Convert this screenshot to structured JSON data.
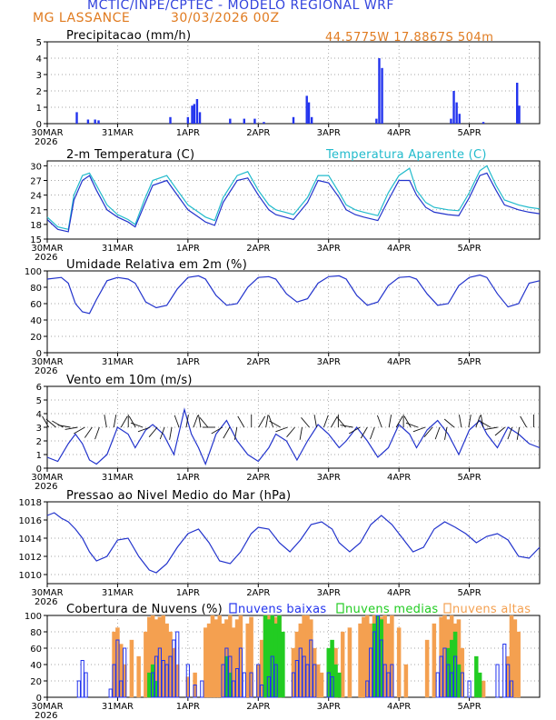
{
  "header": {
    "title": "MCTIC/INPE/CPTEC - MODELO REGIONAL WRF",
    "station": "MG LASSANCE",
    "run": "30/03/2026 00Z",
    "location": "44.5775W 17.8867S 504m",
    "title_color": "#3344dd",
    "orange_color": "#e07b20"
  },
  "time_axis": {
    "labels": [
      "30MAR",
      "31MAR",
      "1APR",
      "2APR",
      "3APR",
      "4APR",
      "5APR"
    ],
    "year": "2026",
    "days": 7
  },
  "chart_data": [
    {
      "type": "bar",
      "title": "Precipitacao (mm/h)",
      "ylim": [
        0,
        5
      ],
      "yticks": [
        "0",
        "1",
        "2",
        "3",
        "4",
        "5"
      ],
      "x": [
        0.42,
        0.58,
        0.68,
        0.73,
        1.75,
        2.0,
        2.06,
        2.09,
        2.13,
        2.17,
        2.6,
        2.8,
        2.95,
        3.08,
        3.5,
        3.69,
        3.72,
        3.76,
        4.68,
        4.72,
        4.76,
        5.74,
        5.78,
        5.82,
        5.86,
        6.2,
        6.68,
        6.71
      ],
      "values": [
        0.7,
        0.25,
        0.25,
        0.2,
        0.4,
        0.4,
        1.1,
        1.2,
        1.5,
        0.7,
        0.3,
        0.3,
        0.3,
        0.1,
        0.4,
        1.7,
        1.3,
        0.4,
        0.3,
        4.0,
        3.4,
        0.3,
        2.0,
        1.3,
        0.6,
        0.1,
        2.5,
        1.1
      ],
      "colors": {
        "bar": "#2233ee"
      }
    },
    {
      "type": "line",
      "title": "2-m Temperatura (C)",
      "title2": "Temperatura Aparente (C)",
      "ylim": [
        15,
        31
      ],
      "yticks": [
        "15",
        "18",
        "21",
        "24",
        "27",
        "30"
      ],
      "series": [
        {
          "name": "2-m Temperatura",
          "color": "#2233cc",
          "x": [
            0,
            0.15,
            0.3,
            0.38,
            0.5,
            0.6,
            0.7,
            0.85,
            1.0,
            1.15,
            1.25,
            1.38,
            1.5,
            1.7,
            1.85,
            2.0,
            2.15,
            2.25,
            2.38,
            2.5,
            2.7,
            2.85,
            3.0,
            3.15,
            3.25,
            3.38,
            3.5,
            3.7,
            3.85,
            4.0,
            4.15,
            4.25,
            4.38,
            4.5,
            4.7,
            4.85,
            5.0,
            5.15,
            5.25,
            5.38,
            5.5,
            5.7,
            5.85,
            6.0,
            6.15,
            6.25,
            6.38,
            6.5,
            6.7,
            6.85,
            7.0
          ],
          "values": [
            19,
            17,
            16.5,
            23,
            27,
            28,
            25,
            21,
            19.5,
            18.5,
            17.5,
            22,
            26,
            27,
            24,
            21,
            19.5,
            18.5,
            17.8,
            22.5,
            27,
            27.5,
            24,
            21,
            20,
            19.5,
            19,
            22.5,
            27,
            26.5,
            23.5,
            21,
            20,
            19.5,
            18.8,
            23,
            27,
            27,
            24,
            21.5,
            20.5,
            20,
            19.8,
            23.5,
            28,
            28.5,
            25,
            22,
            21,
            20.5,
            20.2
          ]
        },
        {
          "name": "Temperatura Aparente",
          "color": "#22bbcc",
          "x": [
            0,
            0.15,
            0.3,
            0.38,
            0.5,
            0.6,
            0.7,
            0.85,
            1.0,
            1.15,
            1.25,
            1.38,
            1.5,
            1.7,
            1.85,
            2.0,
            2.15,
            2.25,
            2.38,
            2.5,
            2.7,
            2.85,
            3.0,
            3.15,
            3.25,
            3.38,
            3.5,
            3.7,
            3.85,
            4.0,
            4.15,
            4.25,
            4.38,
            4.5,
            4.7,
            4.85,
            5.0,
            5.15,
            5.25,
            5.38,
            5.5,
            5.7,
            5.85,
            6.0,
            6.15,
            6.25,
            6.38,
            6.5,
            6.7,
            6.85,
            7.0
          ],
          "values": [
            19.5,
            17.5,
            17,
            24,
            28,
            28.5,
            26,
            22,
            20,
            19,
            18,
            23,
            27,
            28,
            25,
            22,
            20.5,
            19.5,
            18.8,
            23.5,
            28,
            28.8,
            25,
            22,
            21,
            20.5,
            20,
            23.5,
            28,
            28,
            24.5,
            22,
            21,
            20.5,
            19.8,
            24.5,
            28,
            29.5,
            25,
            22.5,
            21.5,
            21,
            20.8,
            24.5,
            29,
            30,
            26,
            23,
            22,
            21.5,
            21.2
          ]
        }
      ]
    },
    {
      "type": "line",
      "title": "Umidade Relativa em 2m (%)",
      "ylim": [
        0,
        100
      ],
      "yticks": [
        "0",
        "20",
        "40",
        "60",
        "80",
        "100"
      ],
      "series": [
        {
          "name": "Umidade Relativa",
          "color": "#2233cc",
          "x": [
            0,
            0.2,
            0.3,
            0.4,
            0.5,
            0.6,
            0.7,
            0.85,
            1.0,
            1.15,
            1.25,
            1.4,
            1.55,
            1.7,
            1.85,
            2.0,
            2.15,
            2.25,
            2.4,
            2.55,
            2.7,
            2.85,
            3.0,
            3.15,
            3.25,
            3.4,
            3.55,
            3.7,
            3.85,
            4.0,
            4.15,
            4.25,
            4.4,
            4.55,
            4.7,
            4.85,
            5.0,
            5.15,
            5.25,
            5.4,
            5.55,
            5.7,
            5.85,
            6.0,
            6.15,
            6.25,
            6.4,
            6.55,
            6.7,
            6.85,
            7.0
          ],
          "values": [
            90,
            92,
            85,
            60,
            50,
            48,
            65,
            88,
            92,
            90,
            85,
            62,
            55,
            58,
            78,
            92,
            94,
            90,
            70,
            58,
            60,
            80,
            92,
            93,
            90,
            72,
            62,
            66,
            85,
            93,
            94,
            90,
            70,
            58,
            62,
            82,
            92,
            93,
            90,
            72,
            58,
            60,
            82,
            92,
            95,
            92,
            72,
            56,
            60,
            85,
            88
          ]
        }
      ]
    },
    {
      "type": "line",
      "title": "Vento em 10m (m/s)",
      "ylim": [
        0,
        6
      ],
      "yticks": [
        "0",
        "1",
        "2",
        "3",
        "4",
        "5",
        "6"
      ],
      "series": [
        {
          "name": "Vento",
          "color": "#2233cc",
          "x": [
            0,
            0.15,
            0.3,
            0.4,
            0.5,
            0.6,
            0.7,
            0.85,
            1.0,
            1.15,
            1.25,
            1.4,
            1.5,
            1.65,
            1.8,
            1.95,
            2.05,
            2.15,
            2.25,
            2.4,
            2.55,
            2.7,
            2.85,
            3.0,
            3.15,
            3.25,
            3.4,
            3.55,
            3.7,
            3.85,
            4.0,
            4.15,
            4.25,
            4.4,
            4.55,
            4.7,
            4.85,
            5.0,
            5.15,
            5.25,
            5.4,
            5.55,
            5.7,
            5.85,
            6.0,
            6.15,
            6.25,
            6.4,
            6.55,
            6.7,
            6.85,
            7.0
          ],
          "values": [
            0.8,
            0.5,
            1.8,
            2.5,
            1.8,
            0.6,
            0.3,
            1.0,
            3.0,
            2.5,
            1.5,
            2.8,
            3.2,
            2.5,
            1.0,
            4.3,
            2.5,
            1.5,
            0.3,
            2.5,
            3.5,
            2.0,
            1.0,
            0.5,
            1.5,
            2.5,
            2.0,
            0.6,
            2.0,
            3.2,
            2.5,
            1.5,
            2.0,
            3.0,
            2.0,
            0.8,
            1.5,
            3.2,
            2.5,
            1.5,
            2.8,
            3.5,
            2.5,
            1.0,
            2.8,
            3.5,
            2.5,
            1.5,
            3.0,
            2.5,
            1.8,
            1.5
          ]
        }
      ]
    },
    {
      "type": "line",
      "title": "Pressao ao Nivel Medio do Mar (hPa)",
      "ylim": [
        1009,
        1018
      ],
      "yticks": [
        "1010",
        "1012",
        "1014",
        "1016",
        "1018"
      ],
      "series": [
        {
          "name": "Pressao",
          "color": "#2233cc",
          "x": [
            0,
            0.1,
            0.2,
            0.3,
            0.4,
            0.5,
            0.6,
            0.7,
            0.85,
            1.0,
            1.15,
            1.3,
            1.45,
            1.55,
            1.7,
            1.85,
            2.0,
            2.15,
            2.3,
            2.45,
            2.6,
            2.75,
            2.9,
            3.0,
            3.15,
            3.3,
            3.45,
            3.6,
            3.75,
            3.9,
            4.05,
            4.15,
            4.3,
            4.45,
            4.6,
            4.75,
            4.9,
            5.05,
            5.2,
            5.35,
            5.5,
            5.65,
            5.8,
            5.95,
            6.1,
            6.25,
            6.4,
            6.55,
            6.7,
            6.85,
            7.0
          ],
          "values": [
            1016.5,
            1016.8,
            1016.2,
            1015.8,
            1015,
            1014,
            1012.5,
            1011.5,
            1012,
            1013.8,
            1014,
            1012,
            1010.5,
            1010.2,
            1011.2,
            1013,
            1014.5,
            1015,
            1013.5,
            1011.5,
            1011.2,
            1012.5,
            1014.5,
            1015.2,
            1015,
            1013.5,
            1012.5,
            1013.8,
            1015.5,
            1015.8,
            1015,
            1013.5,
            1012.5,
            1013.5,
            1015.5,
            1016.5,
            1015.5,
            1014,
            1012.5,
            1013,
            1015,
            1015.8,
            1015.2,
            1014.5,
            1013.5,
            1014.2,
            1014.5,
            1013.8,
            1012,
            1011.8,
            1013
          ]
        }
      ]
    },
    {
      "type": "bar",
      "title": "Cobertura de Nuvens (%)",
      "legend": [
        {
          "name": "nuvens baixas",
          "color": "#2233ee"
        },
        {
          "name": "nuvens medias",
          "color": "#22cc22"
        },
        {
          "name": "nuvens altas",
          "color": "#f4a050"
        }
      ],
      "ylim": [
        0,
        100
      ],
      "yticks": [
        "0",
        "20",
        "40",
        "60",
        "80",
        "100"
      ],
      "series": [
        {
          "name": "nuvens altas",
          "color": "#f4a050",
          "x": [
            0.95,
            1.0,
            1.05,
            1.1,
            1.2,
            1.3,
            1.4,
            1.45,
            1.5,
            1.55,
            1.6,
            1.65,
            1.7,
            1.75,
            1.8,
            1.85,
            2.0,
            2.1,
            2.25,
            2.3,
            2.35,
            2.4,
            2.45,
            2.5,
            2.55,
            2.6,
            2.65,
            2.7,
            2.75,
            2.85,
            2.9,
            3.0,
            3.05,
            3.1,
            3.15,
            3.2,
            3.25,
            3.3,
            3.5,
            3.55,
            3.6,
            3.65,
            3.7,
            3.75,
            3.8,
            3.85,
            3.9,
            4.0,
            4.1,
            4.2,
            4.3,
            4.45,
            4.5,
            4.55,
            4.6,
            4.65,
            4.7,
            4.75,
            4.8,
            4.85,
            4.9,
            5.0,
            5.1,
            5.4,
            5.5,
            5.6,
            5.65,
            5.7,
            5.75,
            5.8,
            5.85,
            5.9,
            6.2,
            6.55,
            6.6,
            6.65,
            6.7
          ],
          "values": [
            80,
            85,
            65,
            40,
            70,
            50,
            80,
            98,
            100,
            95,
            98,
            100,
            90,
            80,
            60,
            40,
            25,
            30,
            85,
            90,
            100,
            95,
            100,
            90,
            95,
            100,
            85,
            95,
            100,
            90,
            98,
            40,
            70,
            100,
            100,
            95,
            98,
            100,
            60,
            80,
            90,
            100,
            100,
            95,
            60,
            40,
            30,
            20,
            60,
            80,
            85,
            90,
            98,
            100,
            90,
            100,
            95,
            98,
            100,
            90,
            100,
            85,
            40,
            70,
            90,
            98,
            100,
            95,
            100,
            90,
            95,
            60,
            20,
            50,
            100,
            95,
            80
          ]
        },
        {
          "name": "nuvens medias",
          "color": "#22cc22",
          "x": [
            1.45,
            1.5,
            1.55,
            2.55,
            2.6,
            3.1,
            3.15,
            3.2,
            3.25,
            3.3,
            3.35,
            4.0,
            4.05,
            4.1,
            4.15,
            4.65,
            4.7,
            4.75,
            5.7,
            5.75,
            5.8,
            5.85,
            6.1,
            6.15
          ],
          "values": [
            30,
            40,
            20,
            50,
            30,
            100,
            95,
            100,
            90,
            100,
            80,
            60,
            70,
            40,
            30,
            90,
            100,
            95,
            60,
            70,
            80,
            40,
            50,
            30
          ]
        },
        {
          "name": "nuvens baixas",
          "color": "#2233ee",
          "x": [
            0.45,
            0.5,
            0.55,
            0.9,
            0.95,
            1.0,
            1.05,
            1.1,
            1.5,
            1.55,
            1.6,
            1.65,
            1.7,
            1.75,
            1.8,
            1.85,
            2.0,
            2.1,
            2.2,
            2.5,
            2.55,
            2.6,
            2.65,
            2.7,
            2.75,
            2.8,
            2.9,
            3.0,
            3.05,
            3.15,
            3.2,
            3.25,
            3.5,
            3.55,
            3.6,
            3.65,
            3.7,
            3.75,
            3.8,
            4.0,
            4.05,
            4.55,
            4.6,
            4.65,
            4.7,
            4.75,
            4.8,
            4.85,
            4.9,
            5.55,
            5.6,
            5.65,
            5.7,
            5.75,
            5.8,
            5.9,
            6.0,
            6.4,
            6.5,
            6.55,
            6.6
          ],
          "values": [
            20,
            45,
            30,
            10,
            40,
            70,
            20,
            60,
            30,
            50,
            60,
            45,
            40,
            50,
            70,
            80,
            40,
            15,
            20,
            40,
            60,
            50,
            20,
            35,
            60,
            30,
            30,
            40,
            15,
            25,
            50,
            40,
            30,
            45,
            60,
            50,
            40,
            70,
            40,
            30,
            25,
            20,
            60,
            80,
            100,
            70,
            40,
            30,
            40,
            30,
            50,
            60,
            40,
            30,
            50,
            30,
            20,
            40,
            65,
            40,
            20
          ]
        }
      ]
    }
  ],
  "wind_vectors": {
    "baseline": 3,
    "angles": [
      120,
      140,
      150,
      170,
      190,
      210,
      235,
      250,
      100,
      80,
      60,
      90,
      120,
      160,
      200,
      230,
      250,
      260,
      110,
      80,
      70,
      100,
      130,
      180,
      210,
      240,
      260,
      120,
      90,
      60,
      80,
      110,
      150,
      200,
      230,
      260,
      130,
      100,
      70,
      60,
      90,
      130,
      170,
      210,
      240,
      250,
      110,
      80,
      60,
      90,
      120,
      160,
      200,
      230,
      250,
      260,
      140,
      100,
      80,
      70,
      100,
      150,
      190,
      220,
      250,
      260,
      120,
      90
    ],
    "color": "#111111"
  }
}
